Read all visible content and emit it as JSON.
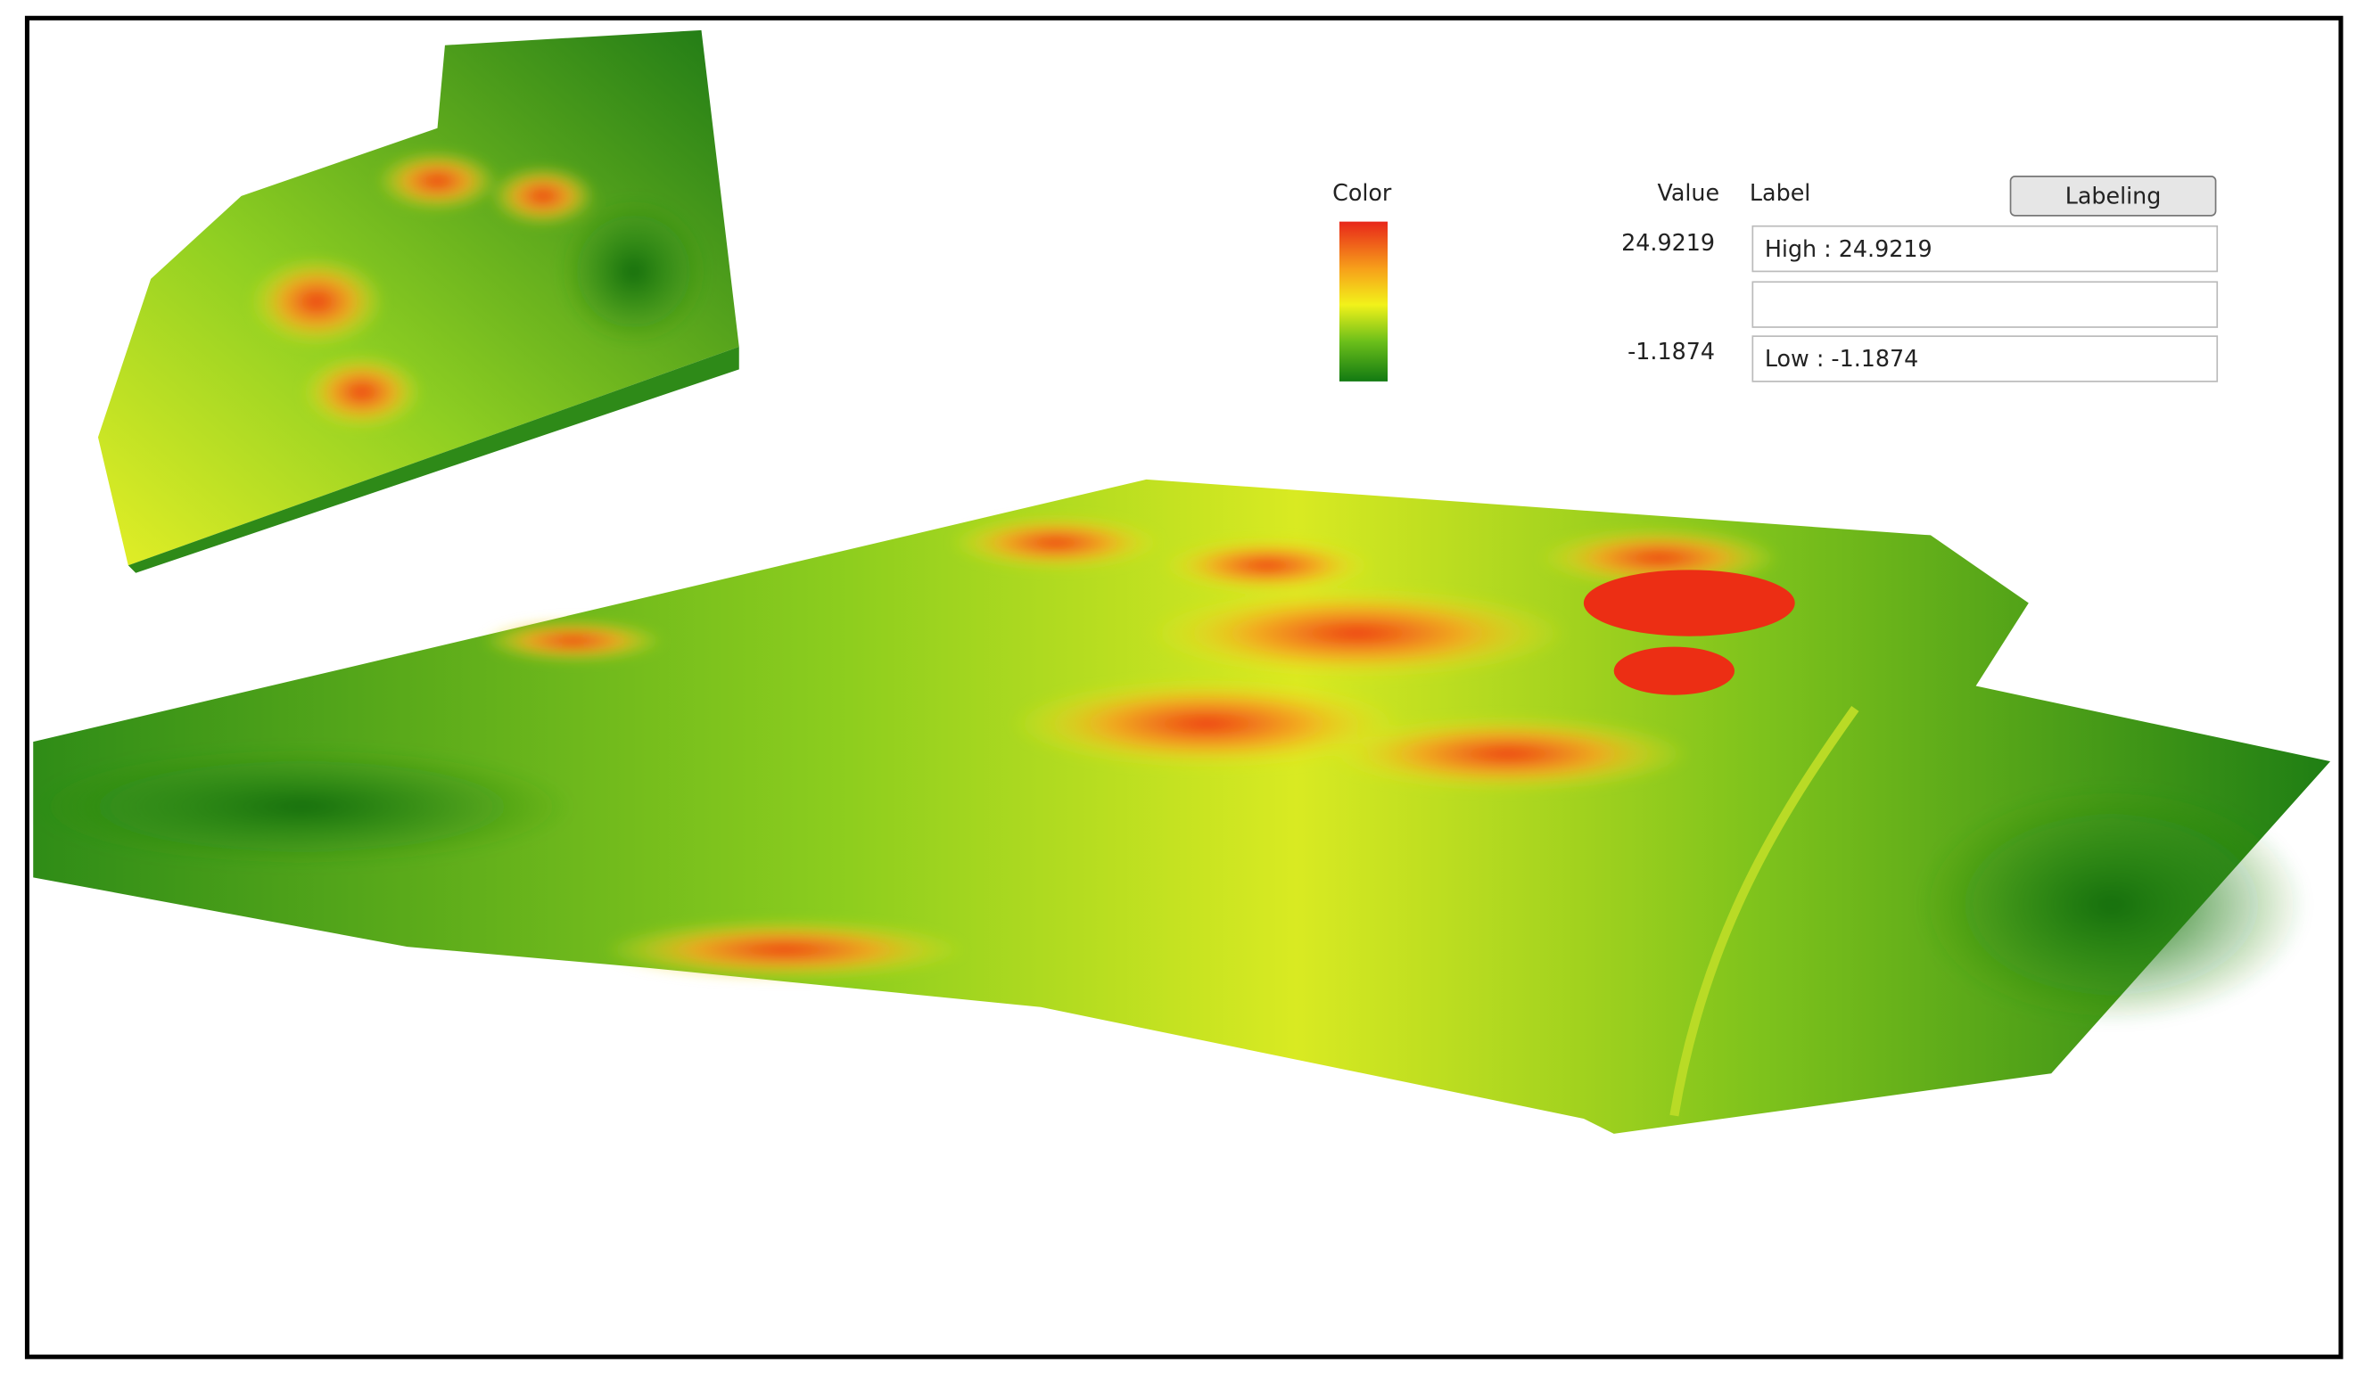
{
  "legend": {
    "headers": {
      "color": "Color",
      "value": "Value",
      "label": "Label"
    },
    "button": "Labeling",
    "rows": [
      {
        "value": "24.9219",
        "label": "High : 24.9219"
      },
      {
        "value": "-1.1874",
        "label": "Low : -1.1874"
      }
    ]
  }
}
